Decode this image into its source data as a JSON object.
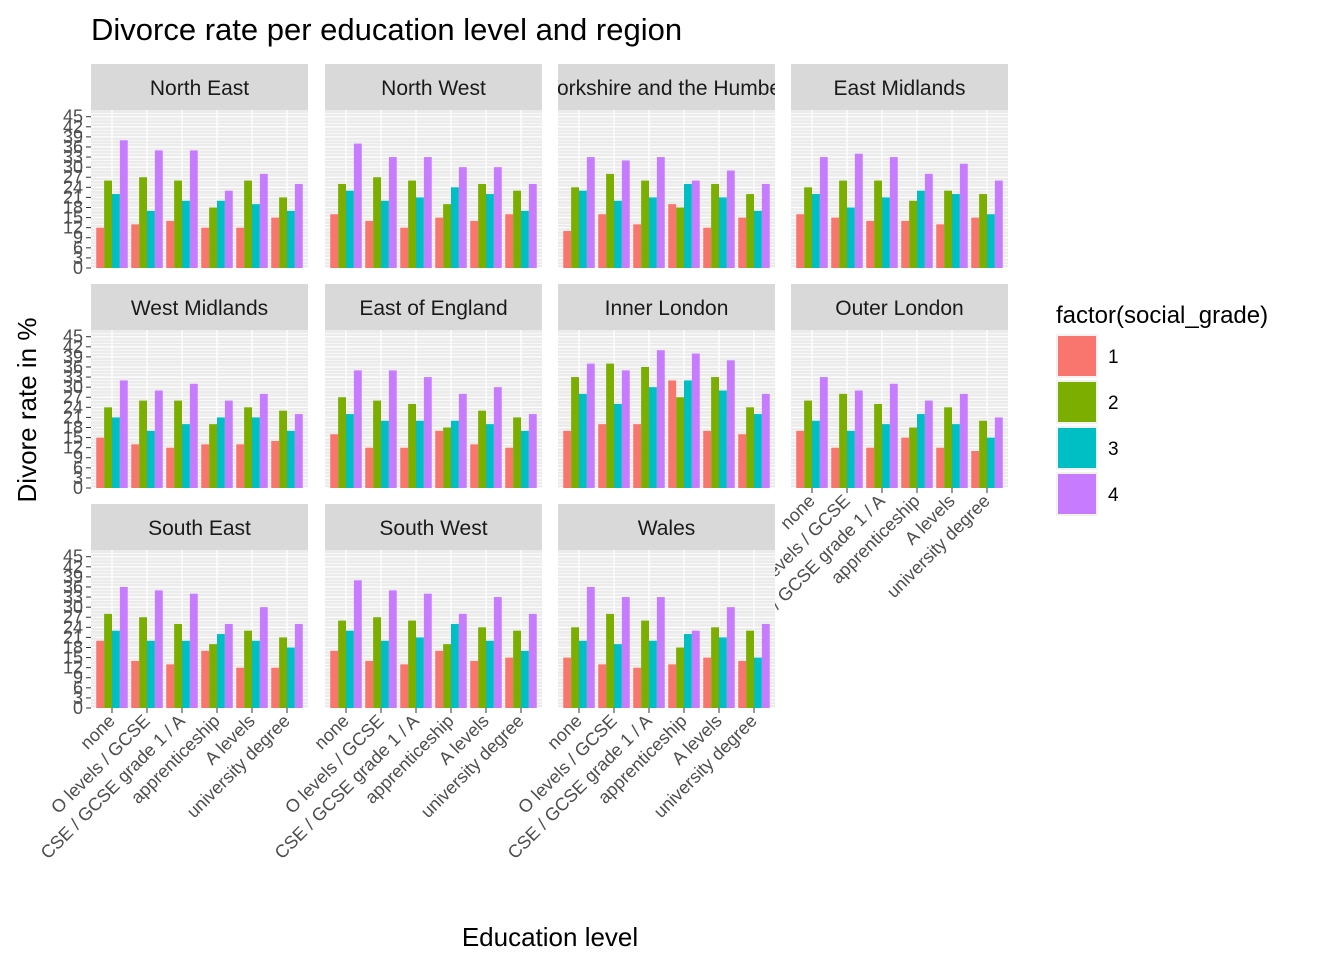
{
  "chart_data": {
    "type": "bar",
    "title": "Divorce rate per education level and region",
    "xlabel": "Education level",
    "ylabel": "Divore rate in %",
    "ylim": [
      0,
      47
    ],
    "y_ticks": [
      0,
      3,
      6,
      9,
      12,
      15,
      18,
      21,
      24,
      27,
      30,
      33,
      36,
      39,
      42,
      45
    ],
    "grid": true,
    "categories": [
      "none",
      "O levels / GCSE",
      "CSE / GCSE grade 1 / A",
      "apprenticeship",
      "A levels",
      "university degree"
    ],
    "legend": {
      "title": "factor(social_grade)",
      "position": "right",
      "entries": [
        {
          "label": "1",
          "color": "#F8766D"
        },
        {
          "label": "2",
          "color": "#7CAE00"
        },
        {
          "label": "3",
          "color": "#00BFC4"
        },
        {
          "label": "4",
          "color": "#C77CFF"
        }
      ]
    },
    "panels": [
      {
        "name": "North East",
        "series": [
          {
            "name": "1",
            "values": [
              12,
              13,
              14,
              12,
              12,
              15
            ]
          },
          {
            "name": "2",
            "values": [
              26,
              27,
              26,
              18,
              26,
              21
            ]
          },
          {
            "name": "3",
            "values": [
              22,
              17,
              20,
              20,
              19,
              17
            ]
          },
          {
            "name": "4",
            "values": [
              38,
              35,
              35,
              23,
              28,
              25
            ]
          }
        ]
      },
      {
        "name": "North West",
        "series": [
          {
            "name": "1",
            "values": [
              16,
              14,
              12,
              15,
              14,
              16
            ]
          },
          {
            "name": "2",
            "values": [
              25,
              27,
              26,
              19,
              25,
              23
            ]
          },
          {
            "name": "3",
            "values": [
              23,
              20,
              21,
              24,
              22,
              17
            ]
          },
          {
            "name": "4",
            "values": [
              37,
              33,
              33,
              30,
              30,
              25
            ]
          }
        ]
      },
      {
        "name": "Yorkshire and the Humber",
        "series": [
          {
            "name": "1",
            "values": [
              11,
              16,
              13,
              19,
              12,
              15
            ]
          },
          {
            "name": "2",
            "values": [
              24,
              28,
              26,
              18,
              25,
              22
            ]
          },
          {
            "name": "3",
            "values": [
              23,
              20,
              21,
              25,
              21,
              17
            ]
          },
          {
            "name": "4",
            "values": [
              33,
              32,
              33,
              26,
              29,
              25
            ]
          }
        ]
      },
      {
        "name": "East Midlands",
        "series": [
          {
            "name": "1",
            "values": [
              16,
              15,
              14,
              14,
              13,
              15
            ]
          },
          {
            "name": "2",
            "values": [
              24,
              26,
              26,
              20,
              23,
              22
            ]
          },
          {
            "name": "3",
            "values": [
              22,
              18,
              21,
              23,
              22,
              16
            ]
          },
          {
            "name": "4",
            "values": [
              33,
              34,
              33,
              28,
              31,
              26
            ]
          }
        ]
      },
      {
        "name": "West Midlands",
        "series": [
          {
            "name": "1",
            "values": [
              15,
              13,
              12,
              13,
              13,
              14
            ]
          },
          {
            "name": "2",
            "values": [
              24,
              26,
              26,
              19,
              24,
              23
            ]
          },
          {
            "name": "3",
            "values": [
              21,
              17,
              19,
              21,
              21,
              17
            ]
          },
          {
            "name": "4",
            "values": [
              32,
              29,
              31,
              26,
              28,
              22
            ]
          }
        ]
      },
      {
        "name": "East of England",
        "series": [
          {
            "name": "1",
            "values": [
              16,
              12,
              12,
              17,
              13,
              12
            ]
          },
          {
            "name": "2",
            "values": [
              27,
              26,
              25,
              18,
              23,
              21
            ]
          },
          {
            "name": "3",
            "values": [
              22,
              20,
              20,
              20,
              19,
              17
            ]
          },
          {
            "name": "4",
            "values": [
              35,
              35,
              33,
              28,
              30,
              22
            ]
          }
        ]
      },
      {
        "name": "Inner London",
        "series": [
          {
            "name": "1",
            "values": [
              17,
              19,
              19,
              32,
              17,
              16
            ]
          },
          {
            "name": "2",
            "values": [
              33,
              37,
              36,
              27,
              33,
              24
            ]
          },
          {
            "name": "3",
            "values": [
              28,
              25,
              30,
              32,
              29,
              22
            ]
          },
          {
            "name": "4",
            "values": [
              37,
              35,
              41,
              40,
              38,
              28
            ]
          }
        ]
      },
      {
        "name": "Outer London",
        "series": [
          {
            "name": "1",
            "values": [
              17,
              12,
              12,
              15,
              12,
              11
            ]
          },
          {
            "name": "2",
            "values": [
              26,
              28,
              25,
              18,
              24,
              20
            ]
          },
          {
            "name": "3",
            "values": [
              20,
              17,
              19,
              22,
              19,
              15
            ]
          },
          {
            "name": "4",
            "values": [
              33,
              29,
              31,
              26,
              28,
              21
            ]
          }
        ]
      },
      {
        "name": "South East",
        "series": [
          {
            "name": "1",
            "values": [
              20,
              14,
              13,
              17,
              12,
              12
            ]
          },
          {
            "name": "2",
            "values": [
              28,
              27,
              25,
              19,
              23,
              21
            ]
          },
          {
            "name": "3",
            "values": [
              23,
              20,
              20,
              22,
              20,
              18
            ]
          },
          {
            "name": "4",
            "values": [
              36,
              35,
              34,
              25,
              30,
              25
            ]
          }
        ]
      },
      {
        "name": "South West",
        "series": [
          {
            "name": "1",
            "values": [
              17,
              14,
              13,
              17,
              14,
              15
            ]
          },
          {
            "name": "2",
            "values": [
              26,
              27,
              26,
              19,
              24,
              23
            ]
          },
          {
            "name": "3",
            "values": [
              23,
              20,
              21,
              25,
              20,
              17
            ]
          },
          {
            "name": "4",
            "values": [
              38,
              35,
              34,
              28,
              33,
              28
            ]
          }
        ]
      },
      {
        "name": "Wales",
        "series": [
          {
            "name": "1",
            "values": [
              15,
              13,
              12,
              13,
              15,
              14
            ]
          },
          {
            "name": "2",
            "values": [
              24,
              28,
              26,
              18,
              24,
              23
            ]
          },
          {
            "name": "3",
            "values": [
              20,
              19,
              20,
              22,
              21,
              15
            ]
          },
          {
            "name": "4",
            "values": [
              36,
              33,
              33,
              23,
              30,
              25
            ]
          }
        ]
      }
    ]
  }
}
